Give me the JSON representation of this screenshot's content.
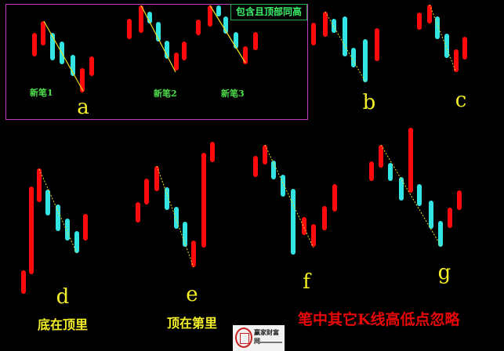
{
  "colors": {
    "up": "#ff0a0a",
    "down": "#33e4e4",
    "pen_line": "#f0e020",
    "frame": "#c23cc2",
    "note": "#3cf06a",
    "letters": "#f4f028",
    "rule_text": "#e80808"
  },
  "top_panel": {
    "note": "包含且顶部同高",
    "pen_labels": [
      "新笔1",
      "新笔2",
      "新笔3"
    ]
  },
  "letters": [
    "a",
    "b",
    "c",
    "d",
    "e",
    "f",
    "g"
  ],
  "captions": {
    "d": "底在顶里",
    "e": "顶在第里"
  },
  "rule_text": "笔中其它K线高低点忽略",
  "logo": {
    "name": "赢家财富网",
    "icon": "seal-logo"
  }
}
